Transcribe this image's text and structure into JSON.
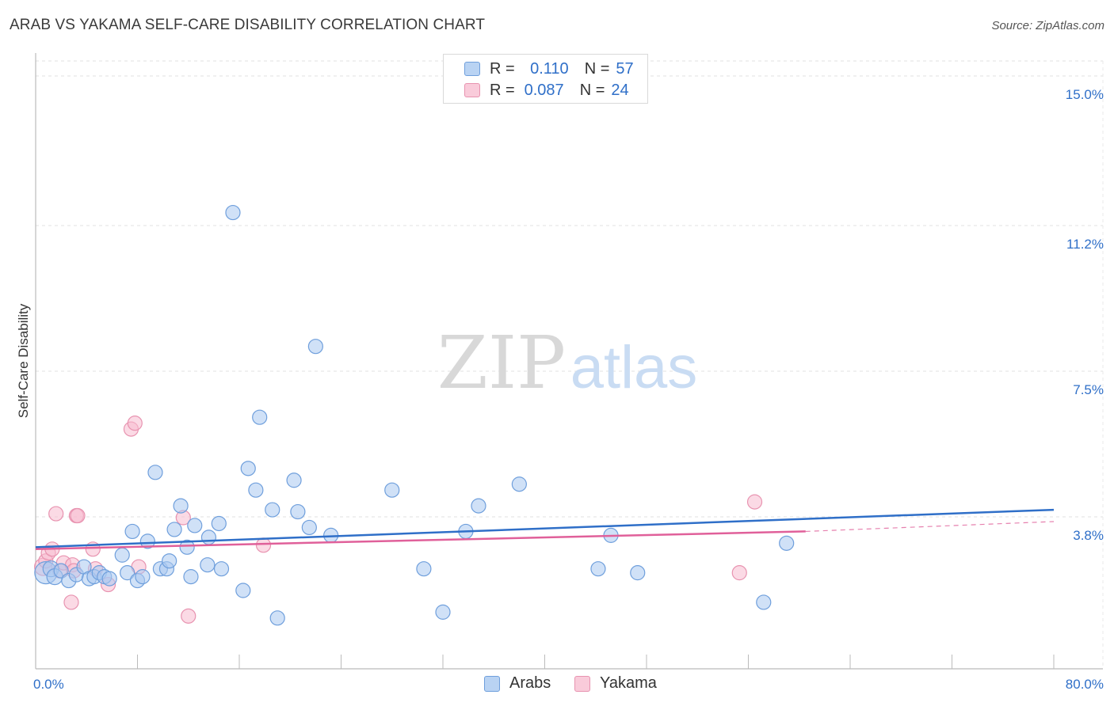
{
  "title": "ARAB VS YAKAMA SELF-CARE DISABILITY CORRELATION CHART",
  "source": "Source: ZipAtlas.com",
  "watermark": {
    "zip": "ZIP",
    "atlas": "atlas"
  },
  "legend": {
    "rows": [
      {
        "r_label": "R =",
        "r_value": "0.110",
        "n_label": "N =",
        "n_value": "57"
      },
      {
        "r_label": "R =",
        "r_value": "0.087",
        "n_label": "N =",
        "n_value": "24"
      }
    ]
  },
  "colors": {
    "arabs_fill": "#a9c8f0",
    "arabs_stroke": "#6f9fdc",
    "arabs_line": "#2f6fc8",
    "yakama_fill": "#f7bcd0",
    "yakama_stroke": "#e893b0",
    "yakama_line": "#e0609a",
    "tick_text": "#2f6fc8",
    "grid": "#dddddd"
  },
  "chart_data": {
    "type": "scatter",
    "title": "ARAB VS YAKAMA SELF-CARE DISABILITY CORRELATION CHART",
    "xlabel": "",
    "ylabel": "Self-Care Disability",
    "xlim": [
      0,
      80
    ],
    "ylim": [
      0,
      15.5
    ],
    "x_tick_labels": [
      "0.0%",
      "80.0%"
    ],
    "y_ticks": [
      {
        "value": 3.8,
        "label": "3.8%"
      },
      {
        "value": 7.5,
        "label": "7.5%"
      },
      {
        "value": 11.2,
        "label": "11.2%"
      },
      {
        "value": 15.0,
        "label": "15.0%"
      }
    ],
    "series": [
      {
        "name": "Arabs",
        "r": 0.11,
        "n": 57,
        "trend": {
          "x": [
            0,
            80
          ],
          "y": [
            3.05,
            4.0
          ]
        },
        "points": [
          [
            0.8,
            2.4,
            14
          ],
          [
            1.2,
            2.5,
            10
          ],
          [
            1.5,
            2.3,
            10
          ],
          [
            2.0,
            2.45,
            9
          ],
          [
            2.6,
            2.2,
            9
          ],
          [
            3.2,
            2.35,
            9
          ],
          [
            3.8,
            2.55,
            9
          ],
          [
            4.2,
            2.25,
            9
          ],
          [
            4.6,
            2.3,
            9
          ],
          [
            5.0,
            2.4,
            9
          ],
          [
            5.4,
            2.3,
            9
          ],
          [
            5.8,
            2.25,
            9
          ],
          [
            6.8,
            2.85,
            9
          ],
          [
            7.2,
            2.4,
            9
          ],
          [
            7.6,
            3.45,
            9
          ],
          [
            8.0,
            2.2,
            9
          ],
          [
            8.4,
            2.3,
            9
          ],
          [
            8.8,
            3.2,
            9
          ],
          [
            9.4,
            4.95,
            9
          ],
          [
            9.8,
            2.5,
            9
          ],
          [
            10.3,
            2.5,
            9
          ],
          [
            10.5,
            2.7,
            9
          ],
          [
            10.9,
            3.5,
            9
          ],
          [
            11.4,
            4.1,
            9
          ],
          [
            11.9,
            3.05,
            9
          ],
          [
            12.2,
            2.3,
            9
          ],
          [
            12.5,
            3.6,
            9
          ],
          [
            13.6,
            3.3,
            9
          ],
          [
            13.5,
            2.6,
            9
          ],
          [
            14.4,
            3.65,
            9
          ],
          [
            14.6,
            2.5,
            9
          ],
          [
            15.5,
            11.55,
            9
          ],
          [
            16.3,
            1.95,
            9
          ],
          [
            16.7,
            5.05,
            9
          ],
          [
            17.3,
            4.5,
            9
          ],
          [
            17.6,
            6.35,
            9
          ],
          [
            18.6,
            4.0,
            9
          ],
          [
            19.0,
            1.25,
            9
          ],
          [
            20.3,
            4.75,
            9
          ],
          [
            20.6,
            3.95,
            9
          ],
          [
            21.5,
            3.55,
            9
          ],
          [
            22.0,
            8.15,
            9
          ],
          [
            23.2,
            3.35,
            9
          ],
          [
            28.0,
            4.5,
            9
          ],
          [
            30.5,
            2.5,
            9
          ],
          [
            32.0,
            1.4,
            9
          ],
          [
            33.8,
            3.45,
            9
          ],
          [
            34.8,
            4.1,
            9
          ],
          [
            38.0,
            4.65,
            9
          ],
          [
            44.2,
            2.5,
            9
          ],
          [
            45.2,
            3.35,
            9
          ],
          [
            47.3,
            2.4,
            9
          ],
          [
            57.2,
            1.65,
            9
          ],
          [
            59.0,
            3.15,
            9
          ]
        ]
      },
      {
        "name": "Yakama",
        "r": 0.087,
        "n": 24,
        "trend": {
          "x": [
            0,
            60.5
          ],
          "y": [
            3.0,
            3.45
          ]
        },
        "trend_extension": {
          "x": [
            60.5,
            80
          ],
          "y": [
            3.45,
            3.7
          ]
        },
        "points": [
          [
            0.6,
            2.55,
            11
          ],
          [
            0.8,
            2.7,
            9
          ],
          [
            1.0,
            2.9,
            9
          ],
          [
            1.3,
            3.0,
            9
          ],
          [
            1.6,
            3.9,
            9
          ],
          [
            1.9,
            2.45,
            9
          ],
          [
            2.2,
            2.65,
            9
          ],
          [
            2.9,
            2.6,
            9
          ],
          [
            2.8,
            1.65,
            9
          ],
          [
            3.0,
            2.45,
            9
          ],
          [
            3.2,
            3.85,
            9
          ],
          [
            3.3,
            3.85,
            9
          ],
          [
            4.5,
            3.0,
            9
          ],
          [
            4.7,
            2.5,
            9
          ],
          [
            5.7,
            2.1,
            9
          ],
          [
            7.5,
            6.05,
            9
          ],
          [
            7.8,
            6.2,
            9
          ],
          [
            8.1,
            2.55,
            9
          ],
          [
            11.6,
            3.8,
            9
          ],
          [
            12.0,
            1.3,
            9
          ],
          [
            17.9,
            3.1,
            9
          ],
          [
            55.3,
            2.4,
            9
          ],
          [
            56.5,
            4.2,
            9
          ]
        ]
      }
    ],
    "legend_position": "top-center"
  },
  "bottom_legend": [
    {
      "label": "Arabs"
    },
    {
      "label": "Yakama"
    }
  ]
}
